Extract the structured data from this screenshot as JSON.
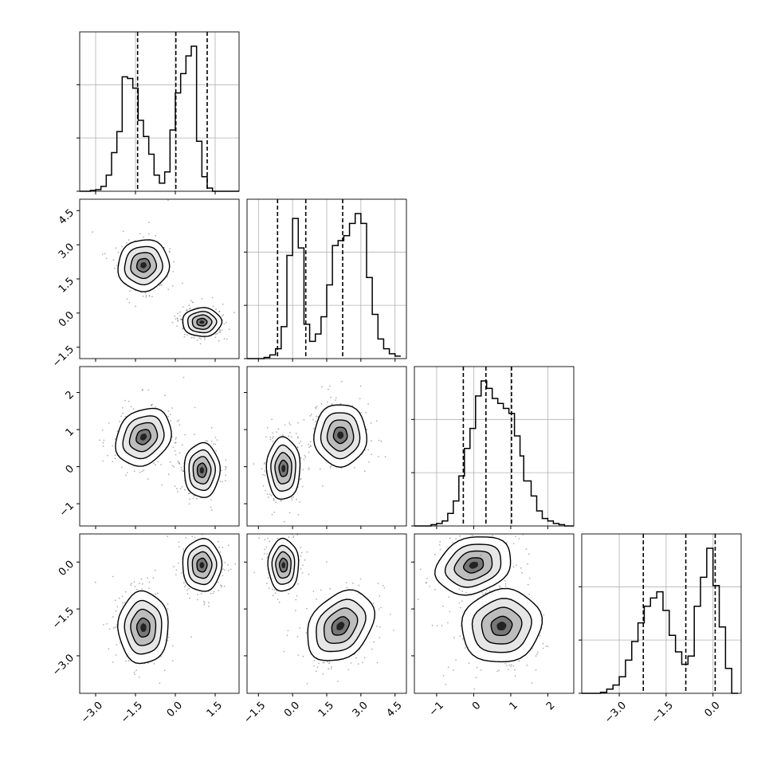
{
  "figure": {
    "type": "corner-plot",
    "n_parameters": 4,
    "colors": {
      "frame": "#000000",
      "grid": "#b0b0b0",
      "histogram": "#000000",
      "points": "#555555",
      "density": "#000000"
    }
  },
  "chart_data": [
    {
      "type": "bar",
      "parameter": 1,
      "xlim": [
        -3.6,
        2.4
      ],
      "bin_edges": [
        -3.6,
        -3.4,
        -3.2,
        -3.0,
        -2.8,
        -2.6,
        -2.4,
        -2.2,
        -2.0,
        -1.8,
        -1.6,
        -1.4,
        -1.2,
        -1.0,
        -0.8,
        -0.6,
        -0.4,
        -0.2,
        0.0,
        0.2,
        0.4,
        0.6,
        0.8,
        1.0,
        1.2,
        1.4,
        1.6,
        1.8,
        2.0,
        2.2,
        2.4
      ],
      "values": [
        0,
        0,
        0.5,
        1,
        3,
        10,
        24,
        37,
        71,
        70,
        64,
        44,
        34,
        23,
        10,
        5,
        12,
        38,
        61,
        73,
        84,
        90,
        31,
        9,
        2,
        0,
        0,
        0,
        0,
        0
      ],
      "quantiles": [
        -1.42,
        0.02,
        1.2
      ],
      "grid": true
    },
    {
      "type": "bar",
      "parameter": 2,
      "xlim": [
        -2.0,
        5.0
      ],
      "bin_edges": [
        -2.0,
        -1.75,
        -1.5,
        -1.25,
        -1.0,
        -0.75,
        -0.5,
        -0.25,
        0.0,
        0.25,
        0.5,
        0.75,
        1.0,
        1.25,
        1.5,
        1.75,
        2.0,
        2.25,
        2.5,
        2.75,
        3.0,
        3.25,
        3.5,
        3.75,
        4.0,
        4.25,
        4.5,
        4.75
      ],
      "values": [
        0,
        0,
        0,
        0.5,
        1.5,
        4,
        13,
        42,
        57,
        45,
        14,
        7,
        10,
        17,
        30,
        46,
        48,
        50,
        55,
        59,
        55,
        33,
        18,
        8,
        4,
        2,
        1
      ],
      "quantiles": [
        -0.66,
        0.58,
        2.2
      ],
      "grid": true
    },
    {
      "type": "bar",
      "parameter": 3,
      "xlim": [
        -1.6,
        2.7
      ],
      "bin_edges": [
        -1.6,
        -1.45,
        -1.3,
        -1.15,
        -1.0,
        -0.85,
        -0.7,
        -0.55,
        -0.4,
        -0.25,
        -0.1,
        0.05,
        0.2,
        0.35,
        0.5,
        0.65,
        0.8,
        0.95,
        1.1,
        1.25,
        1.35,
        1.55,
        1.7,
        1.85,
        2.0,
        2.15,
        2.3,
        2.45,
        2.6,
        2.7
      ],
      "values": [
        0,
        0,
        0,
        0.5,
        1,
        2,
        5,
        10,
        20,
        31,
        39,
        52,
        58,
        55,
        51,
        49,
        47,
        45,
        36,
        28,
        18,
        12,
        6,
        3,
        2,
        1,
        0.5,
        0,
        0
      ],
      "quantiles": [
        -0.28,
        0.33,
        1.02
      ],
      "grid": true
    },
    {
      "type": "bar",
      "parameter": 4,
      "xlim": [
        -4.2,
        0.9
      ],
      "bin_edges": [
        -4.2,
        -4.0,
        -3.8,
        -3.6,
        -3.4,
        -3.2,
        -3.0,
        -2.8,
        -2.6,
        -2.4,
        -2.2,
        -2.0,
        -1.8,
        -1.6,
        -1.4,
        -1.2,
        -1.0,
        -0.8,
        -0.6,
        -0.4,
        -0.2,
        0.0,
        0.2,
        0.4,
        0.6,
        0.8
      ],
      "values": [
        0,
        0,
        0,
        0.5,
        2,
        4,
        8,
        16,
        25,
        34,
        42,
        46,
        49,
        40,
        28,
        20,
        14,
        18,
        42,
        56,
        70,
        52,
        32,
        12,
        0
      ],
      "quantiles": [
        -2.23,
        -0.87,
        0.07
      ],
      "grid": true
    },
    {
      "type": "scatter",
      "subtype": "2d-density-contour",
      "x_parameter": 1,
      "y_parameter": 2,
      "xlim": [
        -3.6,
        2.4
      ],
      "ylim": [
        -2.0,
        5.0
      ],
      "clusters": [
        {
          "mean": [
            -1.2,
            2.1
          ],
          "sd": [
            0.45,
            0.55
          ],
          "rho": -0.55
        },
        {
          "mean": [
            1.0,
            -0.4
          ],
          "sd": [
            0.35,
            0.3
          ],
          "rho": 0.0
        }
      ]
    },
    {
      "type": "scatter",
      "subtype": "2d-density-contour",
      "x_parameter": 1,
      "y_parameter": 3,
      "xlim": [
        -3.6,
        2.4
      ],
      "ylim": [
        -1.6,
        2.7
      ],
      "clusters": [
        {
          "mean": [
            -1.2,
            0.8
          ],
          "sd": [
            0.45,
            0.4
          ],
          "rho": -0.45
        },
        {
          "mean": [
            1.0,
            -0.1
          ],
          "sd": [
            0.32,
            0.35
          ],
          "rho": 0.0
        }
      ]
    },
    {
      "type": "scatter",
      "subtype": "2d-density-contour",
      "x_parameter": 1,
      "y_parameter": 4,
      "xlim": [
        -3.6,
        2.4
      ],
      "ylim": [
        -4.2,
        0.9
      ],
      "clusters": [
        {
          "mean": [
            -1.2,
            -2.1
          ],
          "sd": [
            0.45,
            0.55
          ],
          "rho": 0.0
        },
        {
          "mean": [
            1.0,
            -0.1
          ],
          "sd": [
            0.35,
            0.4
          ],
          "rho": 0.0
        }
      ]
    },
    {
      "type": "scatter",
      "subtype": "2d-density-contour",
      "x_parameter": 2,
      "y_parameter": 3,
      "xlim": [
        -2.0,
        5.0
      ],
      "ylim": [
        -1.6,
        2.7
      ],
      "clusters": [
        {
          "mean": [
            -0.4,
            -0.05
          ],
          "sd": [
            0.35,
            0.4
          ],
          "rho": 0.0
        },
        {
          "mean": [
            2.1,
            0.85
          ],
          "sd": [
            0.55,
            0.4
          ],
          "rho": 0.0
        }
      ]
    },
    {
      "type": "scatter",
      "subtype": "2d-density-contour",
      "x_parameter": 2,
      "y_parameter": 4,
      "xlim": [
        -2.0,
        5.0
      ],
      "ylim": [
        -4.2,
        0.9
      ],
      "clusters": [
        {
          "mean": [
            -0.4,
            -0.1
          ],
          "sd": [
            0.32,
            0.4
          ],
          "rho": 0.0
        },
        {
          "mean": [
            2.1,
            -2.05
          ],
          "sd": [
            0.6,
            0.6
          ],
          "rho": -0.55
        }
      ]
    },
    {
      "type": "scatter",
      "subtype": "2d-density-contour",
      "x_parameter": 3,
      "y_parameter": 4,
      "xlim": [
        -1.6,
        2.7
      ],
      "ylim": [
        -4.2,
        0.9
      ],
      "clusters": [
        {
          "mean": [
            0.0,
            -0.1
          ],
          "sd": [
            0.5,
            0.42
          ],
          "rho": 0.3
        },
        {
          "mean": [
            0.75,
            -2.05
          ],
          "sd": [
            0.52,
            0.55
          ],
          "rho": 0.3
        }
      ]
    }
  ],
  "axes": {
    "x_ticks": [
      {
        "values": [
          -3.0,
          -1.5,
          0.0,
          1.5
        ],
        "labels": [
          "−3.0",
          "−1.5",
          "0.0",
          "1.5"
        ]
      },
      {
        "values": [
          -1.5,
          0.0,
          1.5,
          3.0,
          4.5
        ],
        "labels": [
          "−1.5",
          "0.0",
          "1.5",
          "3.0",
          "4.5"
        ]
      },
      {
        "values": [
          -1,
          0,
          1,
          2
        ],
        "labels": [
          "−1",
          "0",
          "1",
          "2"
        ]
      },
      {
        "values": [
          -3.0,
          -1.5,
          0.0
        ],
        "labels": [
          "−3.0",
          "−1.5",
          "0.0"
        ]
      }
    ],
    "y_ticks": {
      "row2": {
        "values": [
          -1.5,
          0.0,
          1.5,
          3.0,
          4.5
        ],
        "labels": [
          "−1.5",
          "0.0",
          "1.5",
          "3.0",
          "4.5"
        ]
      },
      "row3": {
        "values": [
          -1,
          0,
          1,
          2
        ],
        "labels": [
          "−1",
          "0",
          "1",
          "2"
        ]
      },
      "row4": {
        "values": [
          -3.0,
          -1.5,
          0.0
        ],
        "labels": [
          "−3.0",
          "−1.5",
          "0.0"
        ]
      }
    },
    "hist_grid_fractions": [
      0.35,
      0.7
    ]
  }
}
